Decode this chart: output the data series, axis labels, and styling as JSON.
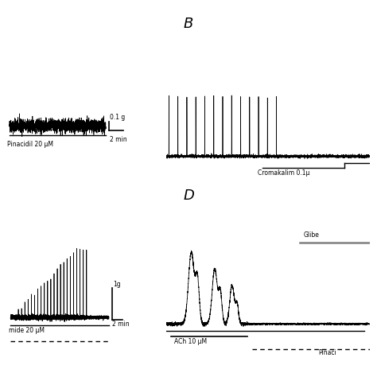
{
  "bg_color": "#ffffff",
  "text_color": "#000000",
  "panel_B_label": "B",
  "panel_D_label": "D",
  "scale_A_vertical": "0.1 g",
  "scale_A_horizontal": "2 min",
  "scale_C_vertical": "1g",
  "scale_C_horizontal": "2 min",
  "label_A": "Pinacidil 20 μM",
  "label_B": "Cromakalim 0.1μ",
  "label_C": "mide 20 μM",
  "label_D_ach": "ACh 10 μM",
  "label_D_pinacidil": "Pinaci",
  "label_D_gliben": "Glibe"
}
